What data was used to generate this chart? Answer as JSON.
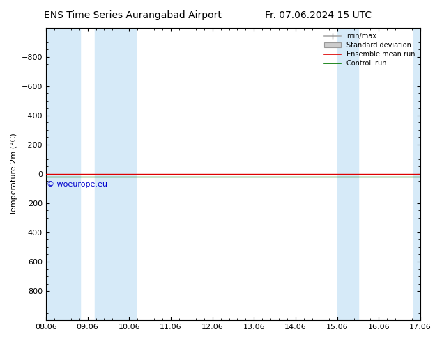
{
  "title_left": "ENS Time Series Aurangabad Airport",
  "title_right": "Fr. 07.06.2024 15 UTC",
  "ylabel": "Temperature 2m (°C)",
  "ylim": [
    -1000,
    1000
  ],
  "yticks": [
    -800,
    -600,
    -400,
    -200,
    0,
    200,
    400,
    600,
    800
  ],
  "xtick_labels": [
    "08.06",
    "09.06",
    "10.06",
    "11.06",
    "12.06",
    "13.06",
    "14.06",
    "15.06",
    "16.06",
    "17.06"
  ],
  "xtick_positions": [
    0,
    1,
    2,
    3,
    4,
    5,
    6,
    7,
    8,
    9
  ],
  "blue_bands": [
    [
      0.0,
      0.83
    ],
    [
      1.17,
      2.17
    ],
    [
      7.0,
      7.5
    ],
    [
      8.83,
      9.0
    ]
  ],
  "ensemble_mean_y": 0,
  "control_run_y": 20,
  "ensemble_mean_color": "#dd0000",
  "control_run_color": "#007700",
  "band_color": "#d6eaf8",
  "copyright_text": "© woeurope.eu",
  "copyright_color": "#0000cc",
  "legend_labels": [
    "min/max",
    "Standard deviation",
    "Ensemble mean run",
    "Controll run"
  ],
  "title_fontsize": 10,
  "axis_fontsize": 8,
  "tick_fontsize": 8,
  "background_color": "#ffffff"
}
